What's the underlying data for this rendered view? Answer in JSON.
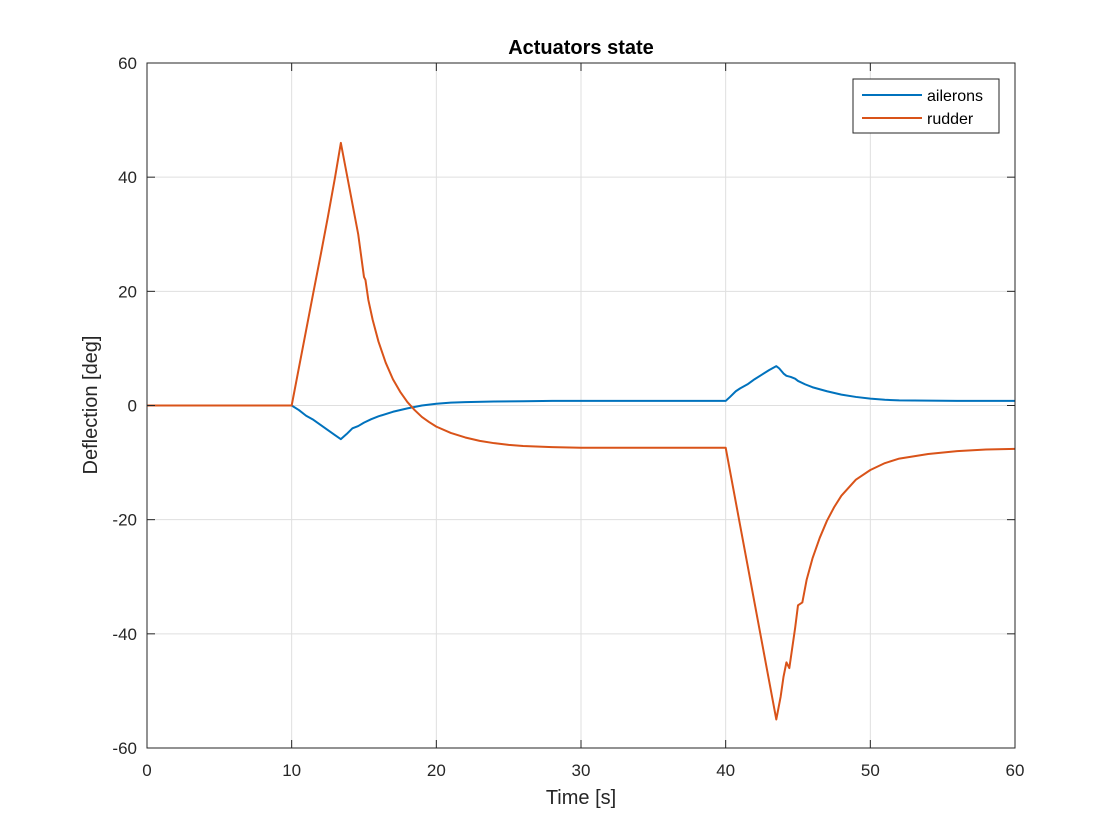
{
  "chart_data": {
    "type": "line",
    "title": "Actuators state",
    "xlabel": "Time [s]",
    "ylabel": "Deflection [deg]",
    "xlim": [
      0,
      60
    ],
    "ylim": [
      -60,
      60
    ],
    "xticks": [
      0,
      10,
      20,
      30,
      40,
      50,
      60
    ],
    "yticks": [
      -60,
      -40,
      -20,
      0,
      20,
      40,
      60
    ],
    "xtick_labels": [
      "0",
      "10",
      "20",
      "30",
      "40",
      "50",
      "60"
    ],
    "ytick_labels": [
      "-60",
      "-40",
      "-20",
      "0",
      "20",
      "40",
      "60"
    ],
    "grid": true,
    "legend_position": "top-right",
    "series": [
      {
        "name": "ailerons",
        "color": "#0072BD",
        "x": [
          0,
          10,
          10.5,
          11,
          11.5,
          12,
          12.5,
          13,
          13.4,
          13.8,
          14.2,
          14.6,
          15,
          15.5,
          16,
          17,
          18,
          19,
          20,
          21,
          22,
          24,
          26,
          28,
          30,
          32,
          34,
          36,
          38,
          40,
          40.3,
          40.7,
          41,
          41.5,
          42,
          42.5,
          43,
          43.5,
          43.7,
          44,
          44.2,
          44.5,
          44.8,
          45,
          45.5,
          46,
          47,
          48,
          49,
          50,
          51,
          52,
          54,
          56,
          58,
          60
        ],
        "y": [
          0,
          0,
          -0.8,
          -1.8,
          -2.5,
          -3.4,
          -4.3,
          -5.2,
          -5.9,
          -5.0,
          -4.0,
          -3.6,
          -3.0,
          -2.4,
          -1.9,
          -1.1,
          -0.5,
          0.0,
          0.3,
          0.5,
          0.6,
          0.7,
          0.75,
          0.8,
          0.8,
          0.8,
          0.8,
          0.8,
          0.8,
          0.8,
          1.5,
          2.5,
          3.0,
          3.7,
          4.6,
          5.4,
          6.2,
          6.9,
          6.5,
          5.6,
          5.2,
          5.0,
          4.7,
          4.3,
          3.7,
          3.2,
          2.5,
          1.9,
          1.5,
          1.2,
          1.0,
          0.9,
          0.85,
          0.8,
          0.8,
          0.8
        ]
      },
      {
        "name": "rudder",
        "color": "#D95319",
        "x": [
          0,
          10,
          10.5,
          11,
          11.5,
          12,
          12.5,
          13,
          13.4,
          13.7,
          14,
          14.3,
          14.6,
          15,
          15.1,
          15.3,
          15.6,
          16,
          16.5,
          17,
          17.5,
          18,
          18.5,
          19,
          19.5,
          20,
          21,
          22,
          23,
          24,
          25,
          26,
          28,
          30,
          32,
          34,
          36,
          38,
          40,
          40.5,
          41,
          41.5,
          42,
          42.5,
          43,
          43.5,
          43.8,
          44,
          44.2,
          44.4,
          44.6,
          44.8,
          45,
          45.3,
          45.6,
          46,
          46.5,
          47,
          47.5,
          48,
          49,
          50,
          51,
          52,
          54,
          56,
          58,
          60
        ],
        "y": [
          0,
          0,
          6.6,
          13.2,
          19.8,
          26.3,
          33.0,
          40.0,
          46.0,
          42.0,
          38.0,
          34.0,
          30.0,
          22.5,
          22.0,
          18.5,
          15.0,
          11.2,
          7.5,
          4.6,
          2.4,
          0.6,
          -0.8,
          -2.0,
          -2.9,
          -3.7,
          -4.8,
          -5.6,
          -6.2,
          -6.6,
          -6.9,
          -7.1,
          -7.3,
          -7.4,
          -7.4,
          -7.4,
          -7.4,
          -7.4,
          -7.4,
          -14.2,
          -21.0,
          -27.8,
          -34.6,
          -41.4,
          -48.2,
          -55.0,
          -51.0,
          -47.5,
          -45.0,
          -46.0,
          -42.5,
          -39.0,
          -35.0,
          -34.5,
          -30.5,
          -26.8,
          -23.2,
          -20.2,
          -17.8,
          -15.8,
          -13.0,
          -11.3,
          -10.1,
          -9.3,
          -8.5,
          -8.0,
          -7.7,
          -7.6
        ]
      }
    ]
  }
}
